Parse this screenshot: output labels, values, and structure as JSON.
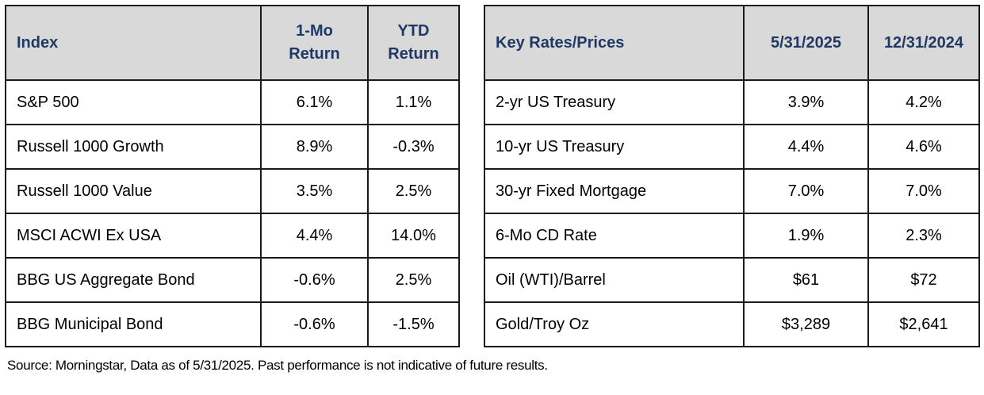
{
  "colors": {
    "header_bg": "#d9d9d9",
    "header_text": "#1f3864",
    "border": "#1a1a1a",
    "body_text": "#000000"
  },
  "index_table": {
    "headers": [
      "Index",
      "1-Mo Return",
      "YTD Return"
    ],
    "rows": [
      {
        "label": "S&P 500",
        "one_mo": "6.1%",
        "ytd": "1.1%"
      },
      {
        "label": "Russell 1000 Growth",
        "one_mo": "8.9%",
        "ytd": "-0.3%"
      },
      {
        "label": "Russell 1000 Value",
        "one_mo": "3.5%",
        "ytd": "2.5%"
      },
      {
        "label": "MSCI ACWI Ex USA",
        "one_mo": "4.4%",
        "ytd": "14.0%"
      },
      {
        "label": "BBG US Aggregate Bond",
        "one_mo": "-0.6%",
        "ytd": "2.5%"
      },
      {
        "label": "BBG Municipal Bond",
        "one_mo": "-0.6%",
        "ytd": "-1.5%"
      }
    ]
  },
  "rates_table": {
    "headers": [
      "Key Rates/Prices",
      "5/31/2025",
      "12/31/2024"
    ],
    "rows": [
      {
        "label": "2-yr US Treasury",
        "current": "3.9%",
        "prior": "4.2%"
      },
      {
        "label": "10-yr US Treasury",
        "current": "4.4%",
        "prior": "4.6%"
      },
      {
        "label": "30-yr Fixed Mortgage",
        "current": "7.0%",
        "prior": "7.0%"
      },
      {
        "label": "6-Mo CD Rate",
        "current": "1.9%",
        "prior": "2.3%"
      },
      {
        "label": "Oil (WTI)/Barrel",
        "current": "$61",
        "prior": "$72"
      },
      {
        "label": "Gold/Troy Oz",
        "current": "$3,289",
        "prior": "$2,641"
      }
    ]
  },
  "footer": {
    "source_note": "Source: Morningstar, Data as of 5/31/2025. Past performance is not indicative of future results."
  }
}
